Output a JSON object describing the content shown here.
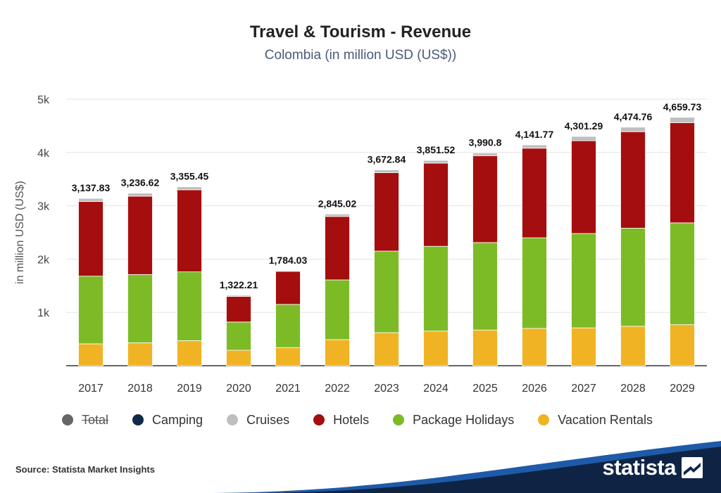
{
  "title": "Travel & Tourism - Revenue",
  "subtitle": "Colombia (in million USD (US$))",
  "source": "Source: Statista Market Insights",
  "logo": "statista",
  "legend": [
    {
      "label": "Total",
      "color": "#666666",
      "hidden": true
    },
    {
      "label": "Camping",
      "color": "#0f2a47"
    },
    {
      "label": "Cruises",
      "color": "#bfbfbf"
    },
    {
      "label": "Hotels",
      "color": "#a50e0e"
    },
    {
      "label": "Package Holidays",
      "color": "#7cbb26"
    },
    {
      "label": "Vacation Rentals",
      "color": "#f0b323"
    }
  ],
  "chart_data": {
    "type": "bar",
    "stacked": true,
    "ylabel": "in million USD (US$)",
    "ylim": [
      0,
      5000
    ],
    "yticks": [
      "1k",
      "2k",
      "3k",
      "4k",
      "5k"
    ],
    "categories": [
      "2017",
      "2018",
      "2019",
      "2020",
      "2021",
      "2022",
      "2023",
      "2024",
      "2025",
      "2026",
      "2027",
      "2028",
      "2029"
    ],
    "totals": [
      "3,137.83",
      "3,236.62",
      "3,355.45",
      "1,322.21",
      "1,784.03",
      "2,845.02",
      "3,672.84",
      "3,851.52",
      "3,990.8",
      "4,141.77",
      "4,301.29",
      "4,474.76",
      "4,659.73"
    ],
    "series": [
      {
        "name": "Vacation Rentals",
        "color": "#f0b323",
        "values": [
          410,
          430,
          470,
          290,
          340,
          490,
          620,
          650,
          670,
          700,
          710,
          740,
          770
        ]
      },
      {
        "name": "Package Holidays",
        "color": "#7cbb26",
        "values": [
          1270,
          1280,
          1290,
          530,
          810,
          1120,
          1530,
          1590,
          1640,
          1700,
          1770,
          1840,
          1910
        ]
      },
      {
        "name": "Hotels",
        "color": "#a50e0e",
        "values": [
          1400,
          1470,
          1540,
          480,
          620,
          1190,
          1470,
          1560,
          1630,
          1680,
          1740,
          1810,
          1880
        ]
      },
      {
        "name": "Cruises",
        "color": "#bfbfbf",
        "values": [
          57.83,
          56.62,
          55.45,
          22.21,
          14.03,
          45.02,
          52.84,
          51.52,
          50.8,
          61.77,
          81.29,
          84.76,
          99.73
        ]
      },
      {
        "name": "Camping",
        "color": "#0f2a47",
        "values": [
          0,
          0,
          0,
          0,
          0,
          0,
          0,
          0,
          0,
          0,
          0,
          0,
          0
        ]
      }
    ],
    "grid": true,
    "legend_position": "bottom"
  }
}
